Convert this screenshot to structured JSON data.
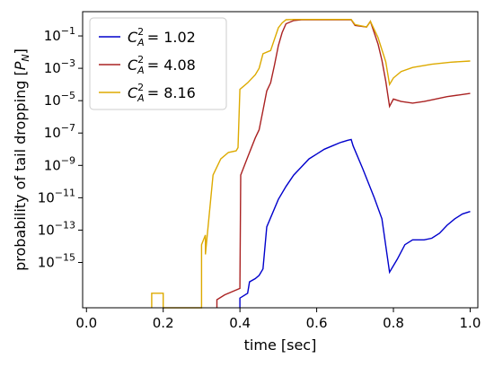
{
  "chart_data": {
    "type": "line",
    "xlabel": "time [sec]",
    "ylabel": "probability of tail dropping [P_N]",
    "xlim": [
      -0.01,
      1.02
    ],
    "ylim_log10": [
      -17.8,
      0.5
    ],
    "y_scale": "log",
    "grid": false,
    "legend_placement": "top-left",
    "x_ticks": [
      0.0,
      0.2,
      0.4,
      0.6,
      0.8,
      1.0
    ],
    "x_tick_labels": [
      "0.0",
      "0.2",
      "0.4",
      "0.6",
      "0.8",
      "1.0"
    ],
    "y_ticks_log10": [
      -1,
      -3,
      -5,
      -7,
      -9,
      -11,
      -13,
      -15
    ],
    "y_tick_labels": [
      "10^-1",
      "10^-3",
      "10^-5",
      "10^-7",
      "10^-9",
      "10^-11",
      "10^-13",
      "10^-15"
    ],
    "series": [
      {
        "name": "C_A^2 = 1.02",
        "name_sup": "2",
        "name_sub": "A",
        "name_value": "= 1.02",
        "color": "#0000cc",
        "points": [
          [
            0.4,
            -17.8
          ],
          [
            0.4,
            -17.2
          ],
          [
            0.42,
            -16.9
          ],
          [
            0.425,
            -16.2
          ],
          [
            0.44,
            -16.0
          ],
          [
            0.45,
            -15.8
          ],
          [
            0.46,
            -15.4
          ],
          [
            0.47,
            -12.8
          ],
          [
            0.5,
            -11.1
          ],
          [
            0.52,
            -10.3
          ],
          [
            0.54,
            -9.6
          ],
          [
            0.56,
            -9.1
          ],
          [
            0.58,
            -8.6
          ],
          [
            0.6,
            -8.3
          ],
          [
            0.62,
            -8.0
          ],
          [
            0.64,
            -7.8
          ],
          [
            0.66,
            -7.6
          ],
          [
            0.68,
            -7.45
          ],
          [
            0.69,
            -7.4
          ],
          [
            0.695,
            -7.8
          ],
          [
            0.72,
            -9.2
          ],
          [
            0.75,
            -11.0
          ],
          [
            0.77,
            -12.3
          ],
          [
            0.79,
            -15.6
          ],
          [
            0.81,
            -14.8
          ],
          [
            0.83,
            -13.9
          ],
          [
            0.85,
            -13.6
          ],
          [
            0.88,
            -13.6
          ],
          [
            0.9,
            -13.5
          ],
          [
            0.92,
            -13.2
          ],
          [
            0.94,
            -12.7
          ],
          [
            0.96,
            -12.3
          ],
          [
            0.98,
            -12.0
          ],
          [
            1.0,
            -11.85
          ]
        ]
      },
      {
        "name": "C_A^2 = 4.08",
        "name_sup": "2",
        "name_sub": "A",
        "name_value": "= 4.08",
        "color": "#aa2222",
        "points": [
          [
            0.34,
            -17.8
          ],
          [
            0.34,
            -17.3
          ],
          [
            0.36,
            -17.0
          ],
          [
            0.38,
            -16.8
          ],
          [
            0.4,
            -16.6
          ],
          [
            0.402,
            -9.6
          ],
          [
            0.42,
            -8.5
          ],
          [
            0.44,
            -7.3
          ],
          [
            0.45,
            -6.8
          ],
          [
            0.46,
            -5.6
          ],
          [
            0.47,
            -4.4
          ],
          [
            0.48,
            -3.9
          ],
          [
            0.49,
            -2.8
          ],
          [
            0.5,
            -1.6
          ],
          [
            0.51,
            -0.8
          ],
          [
            0.52,
            -0.25
          ],
          [
            0.54,
            -0.05
          ],
          [
            0.56,
            0.0
          ],
          [
            0.6,
            0.0
          ],
          [
            0.68,
            0.0
          ],
          [
            0.69,
            0.0
          ],
          [
            0.7,
            -0.35
          ],
          [
            0.73,
            -0.45
          ],
          [
            0.74,
            -0.1
          ],
          [
            0.76,
            -1.5
          ],
          [
            0.77,
            -2.5
          ],
          [
            0.78,
            -3.8
          ],
          [
            0.79,
            -5.35
          ],
          [
            0.8,
            -4.9
          ],
          [
            0.82,
            -5.05
          ],
          [
            0.85,
            -5.15
          ],
          [
            0.88,
            -5.05
          ],
          [
            0.9,
            -4.95
          ],
          [
            0.94,
            -4.75
          ],
          [
            0.97,
            -4.65
          ],
          [
            1.0,
            -4.55
          ]
        ]
      },
      {
        "name": "C_A^2 = 8.16",
        "name_sup": "2",
        "name_sub": "A",
        "name_value": "= 8.16",
        "color": "#ddaa00",
        "points": [
          [
            0.17,
            -17.8
          ],
          [
            0.17,
            -16.9
          ],
          [
            0.2,
            -16.9
          ],
          [
            0.2,
            -17.8
          ],
          [
            0.3,
            -17.8
          ],
          [
            0.3,
            -13.9
          ],
          [
            0.31,
            -13.3
          ],
          [
            0.31,
            -14.5
          ],
          [
            0.33,
            -9.6
          ],
          [
            0.35,
            -8.6
          ],
          [
            0.37,
            -8.2
          ],
          [
            0.39,
            -8.1
          ],
          [
            0.395,
            -7.9
          ],
          [
            0.4,
            -4.3
          ],
          [
            0.42,
            -3.9
          ],
          [
            0.44,
            -3.4
          ],
          [
            0.45,
            -3.0
          ],
          [
            0.46,
            -2.1
          ],
          [
            0.48,
            -1.9
          ],
          [
            0.5,
            -0.5
          ],
          [
            0.51,
            -0.2
          ],
          [
            0.52,
            0.0
          ],
          [
            0.54,
            0.02
          ],
          [
            0.6,
            0.02
          ],
          [
            0.69,
            0.02
          ],
          [
            0.7,
            -0.3
          ],
          [
            0.73,
            -0.45
          ],
          [
            0.74,
            -0.1
          ],
          [
            0.76,
            -1.1
          ],
          [
            0.78,
            -2.6
          ],
          [
            0.79,
            -4.0
          ],
          [
            0.8,
            -3.6
          ],
          [
            0.82,
            -3.2
          ],
          [
            0.85,
            -2.95
          ],
          [
            0.9,
            -2.75
          ],
          [
            0.95,
            -2.62
          ],
          [
            1.0,
            -2.55
          ]
        ]
      }
    ]
  }
}
